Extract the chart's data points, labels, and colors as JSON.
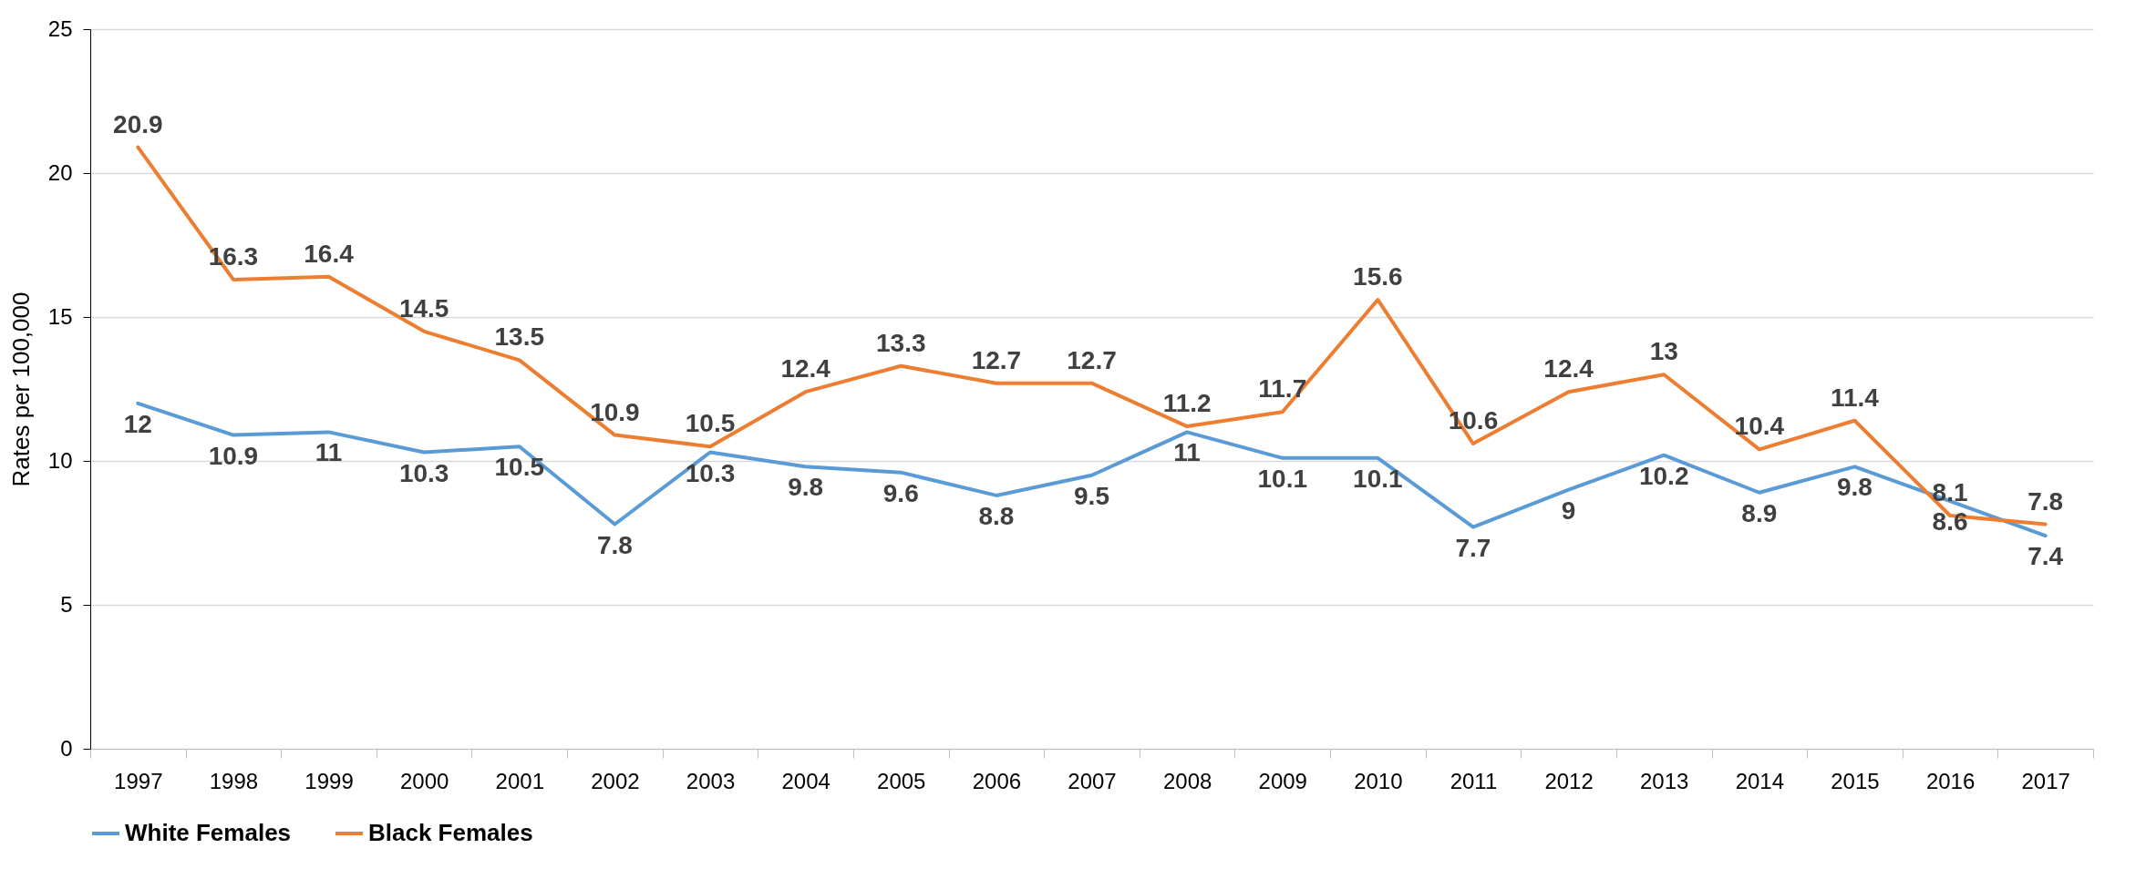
{
  "chart_data": {
    "type": "line",
    "ylabel": "Rates per 100,000",
    "categories": [
      "1997",
      "1998",
      "1999",
      "2000",
      "2001",
      "2002",
      "2003",
      "2004",
      "2005",
      "2006",
      "2007",
      "2008",
      "2009",
      "2010",
      "2011",
      "2012",
      "2013",
      "2014",
      "2015",
      "2016",
      "2017"
    ],
    "series": [
      {
        "name": "White Females",
        "color": "#5b9bd5",
        "values": [
          12,
          10.9,
          11,
          10.3,
          10.5,
          7.8,
          10.3,
          9.8,
          9.6,
          8.8,
          9.5,
          11,
          10.1,
          10.1,
          7.7,
          9,
          10.2,
          8.9,
          9.8,
          8.6,
          7.4
        ]
      },
      {
        "name": "Black Females",
        "color": "#ed7d31",
        "values": [
          20.9,
          16.3,
          16.4,
          14.5,
          13.5,
          10.9,
          10.5,
          12.4,
          13.3,
          12.7,
          12.7,
          11.2,
          11.7,
          15.6,
          10.6,
          12.4,
          13,
          10.4,
          11.4,
          8.1,
          7.8
        ]
      }
    ],
    "ylim": [
      0,
      25
    ],
    "yticks": [
      0,
      5,
      10,
      15,
      20,
      25
    ],
    "grid": "y",
    "legend": "bottom",
    "data_labels": true,
    "marker": "none",
    "line_style": "solid"
  }
}
